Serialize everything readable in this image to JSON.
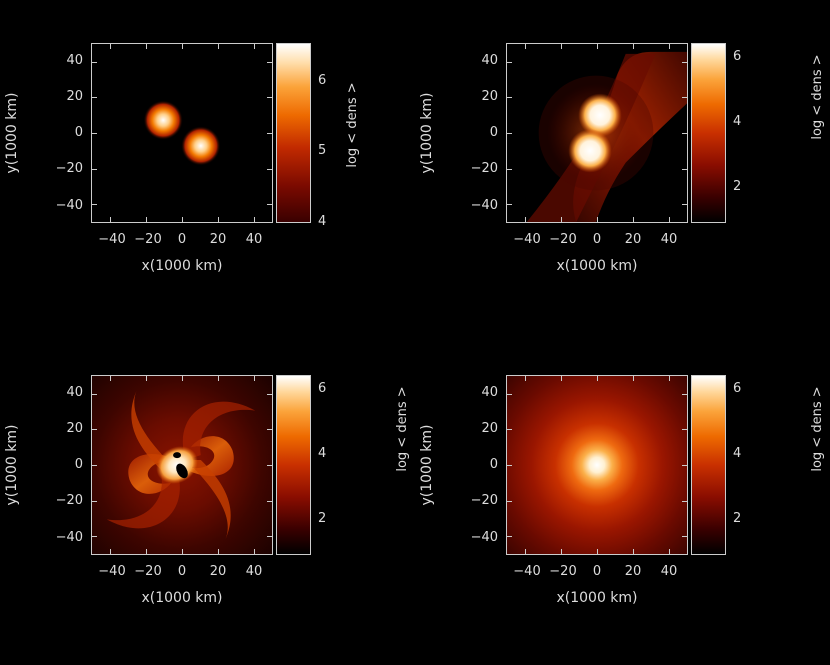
{
  "axes": {
    "xlabel": "x(1000 km)",
    "ylabel": "y(1000 km)",
    "colorbar_label": "log < dens >",
    "x_ticks": [
      "−40",
      "−20",
      "0",
      "20",
      "40"
    ],
    "y_ticks": [
      "40",
      "20",
      "0",
      "−20",
      "−40"
    ]
  },
  "panels": [
    {
      "id": "top-left",
      "cbar_ticks": [
        "6",
        "5",
        "4"
      ]
    },
    {
      "id": "top-right",
      "cbar_ticks": [
        "6",
        "4",
        "2"
      ]
    },
    {
      "id": "bottom-left",
      "cbar_ticks": [
        "6",
        "4",
        "2"
      ]
    },
    {
      "id": "bottom-right",
      "cbar_ticks": [
        "6",
        "4",
        "2"
      ]
    }
  ],
  "colors": {
    "background": "#000000",
    "frame": "#cccccc",
    "hot": "#ffffff",
    "mid": "#ee6a00",
    "cool": "#3a0000"
  }
}
